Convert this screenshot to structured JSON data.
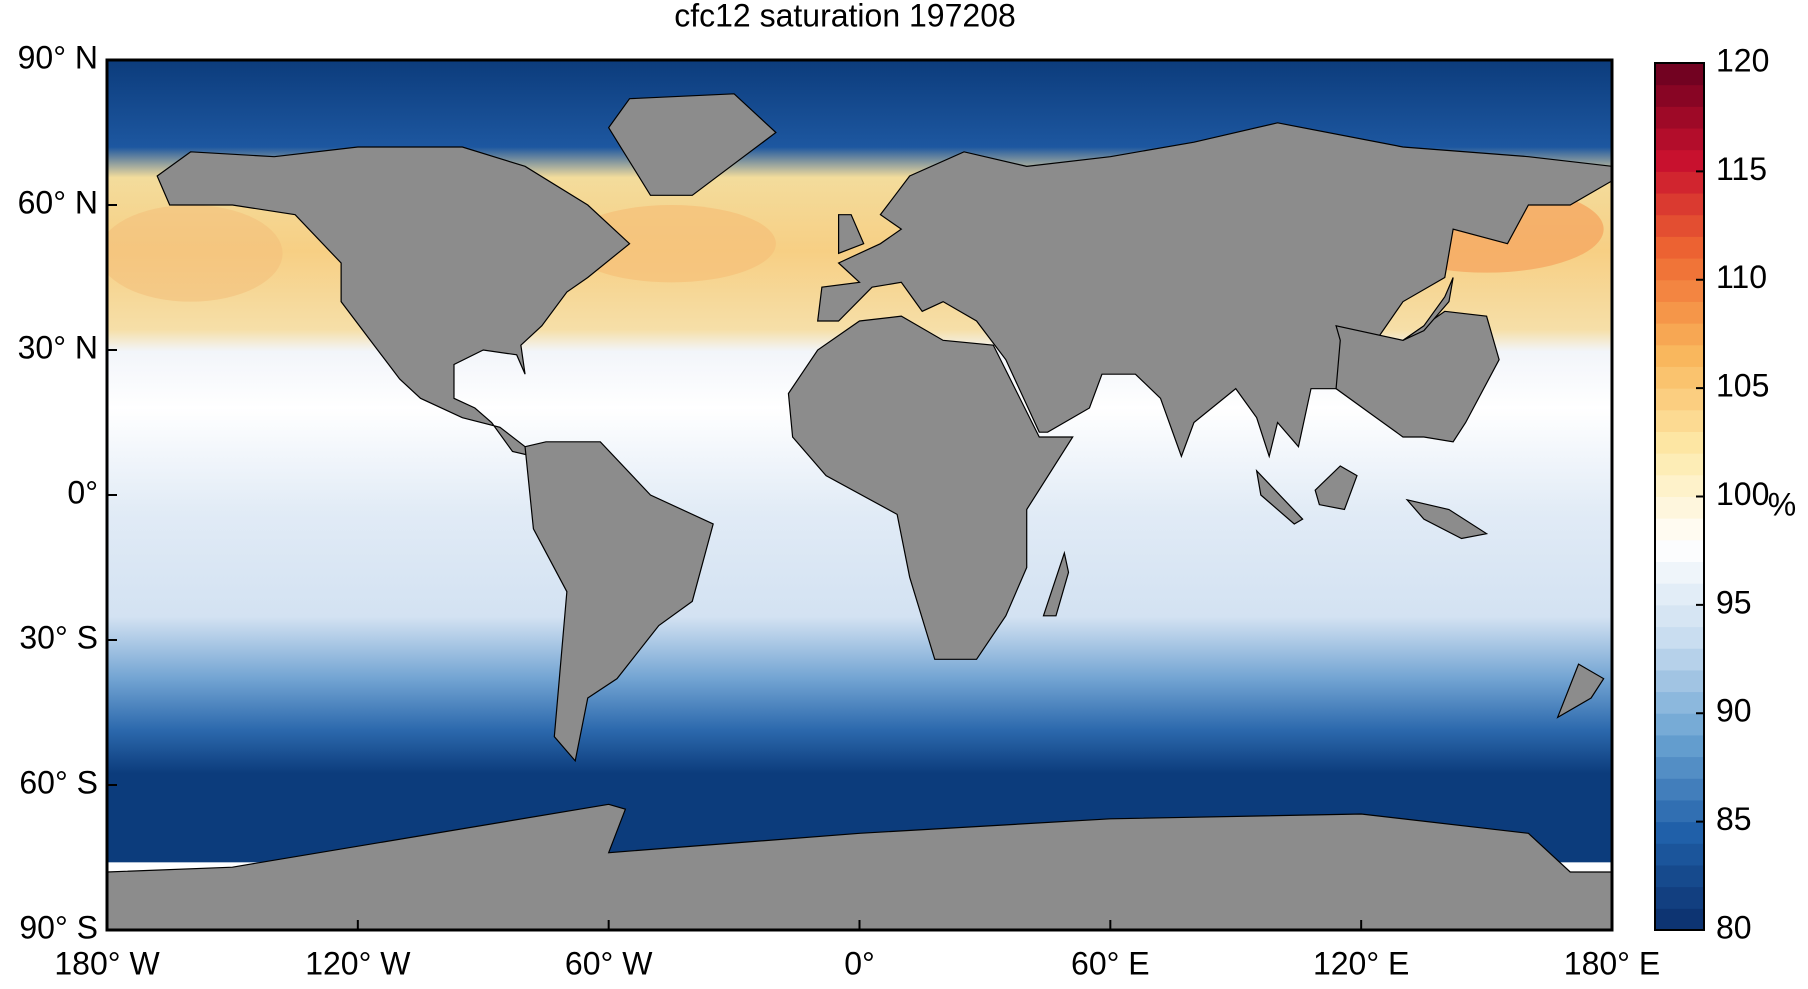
{
  "chart_data": {
    "type": "map",
    "title": "cfc12 saturation 197208",
    "xlim": [
      -180,
      180
    ],
    "xticks": [
      {
        "value": -180,
        "label": "180° W"
      },
      {
        "value": -120,
        "label": "120° W"
      },
      {
        "value": -60,
        "label": "60° W"
      },
      {
        "value": 0,
        "label": "0°"
      },
      {
        "value": 60,
        "label": "60° E"
      },
      {
        "value": 120,
        "label": "120° E"
      },
      {
        "value": 180,
        "label": "180° E"
      }
    ],
    "ylim": [
      -90,
      90
    ],
    "yticks": [
      {
        "value": 90,
        "label": "90° N"
      },
      {
        "value": 60,
        "label": "60° N"
      },
      {
        "value": 30,
        "label": "30° N"
      },
      {
        "value": 0,
        "label": "0°"
      },
      {
        "value": -30,
        "label": "30° S"
      },
      {
        "value": -60,
        "label": "60° S"
      },
      {
        "value": -90,
        "label": "90° S"
      }
    ],
    "colorbar": {
      "label": "%",
      "lim": [
        80,
        120
      ],
      "ticks": [
        80,
        85,
        90,
        95,
        100,
        105,
        110,
        115,
        120
      ],
      "colors": [
        "#0b2f6b",
        "#1f5fa8",
        "#6aa3d2",
        "#c7dcef",
        "#ffffff",
        "#fde9a8",
        "#f9b55a",
        "#ef6a32",
        "#c8102e",
        "#67001f"
      ]
    }
  }
}
